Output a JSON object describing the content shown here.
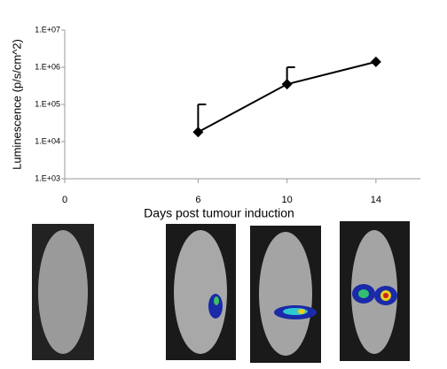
{
  "chart_data": {
    "type": "line",
    "x_label": "Days post tumour induction",
    "y_label": "Luminescence (p/s/cm^2)",
    "x": [
      6,
      10,
      14
    ],
    "values": [
      18000,
      350000,
      1400000
    ],
    "errors": [
      82000,
      650000,
      null
    ],
    "color": "#000000",
    "log_y": true,
    "xlim": [
      0,
      16
    ],
    "xticks": [
      0,
      6,
      10,
      14
    ],
    "ylim": [
      1000,
      10000000
    ],
    "yticks": [
      {
        "value": 1000,
        "label": "1.E+03"
      },
      {
        "value": 10000,
        "label": "1.E+04"
      },
      {
        "value": 100000,
        "label": "1.E+05"
      },
      {
        "value": 1000000,
        "label": "1.E+06"
      },
      {
        "value": 10000000,
        "label": "1.E+07"
      }
    ],
    "grid": false
  }
}
